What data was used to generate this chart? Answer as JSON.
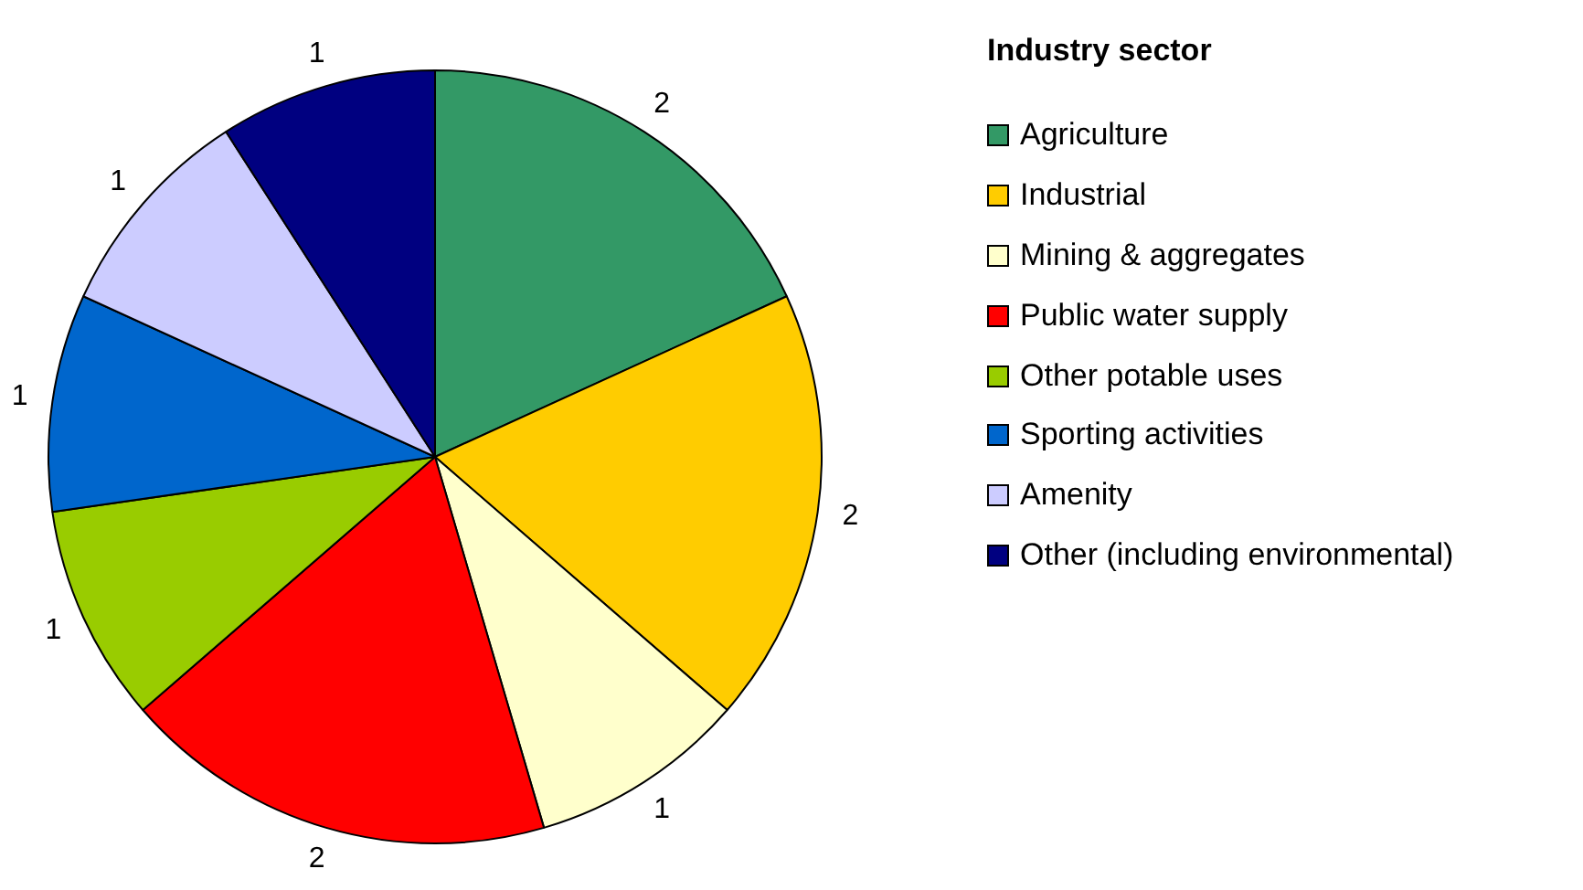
{
  "chart_data": {
    "type": "pie",
    "legend_title": "Industry sector",
    "categories": [
      "Agriculture",
      "Industrial",
      "Mining & aggregates",
      "Public water supply",
      "Other potable uses",
      "Sporting activities",
      "Amenity",
      "Other (including environmental)"
    ],
    "values": [
      2,
      2,
      1,
      2,
      1,
      1,
      1,
      1
    ],
    "colors": [
      "#339966",
      "#ffcc00",
      "#ffffcc",
      "#ff0000",
      "#99cc00",
      "#0066cc",
      "#ccccff",
      "#000080"
    ],
    "data_labels": true,
    "legend": "top right"
  }
}
